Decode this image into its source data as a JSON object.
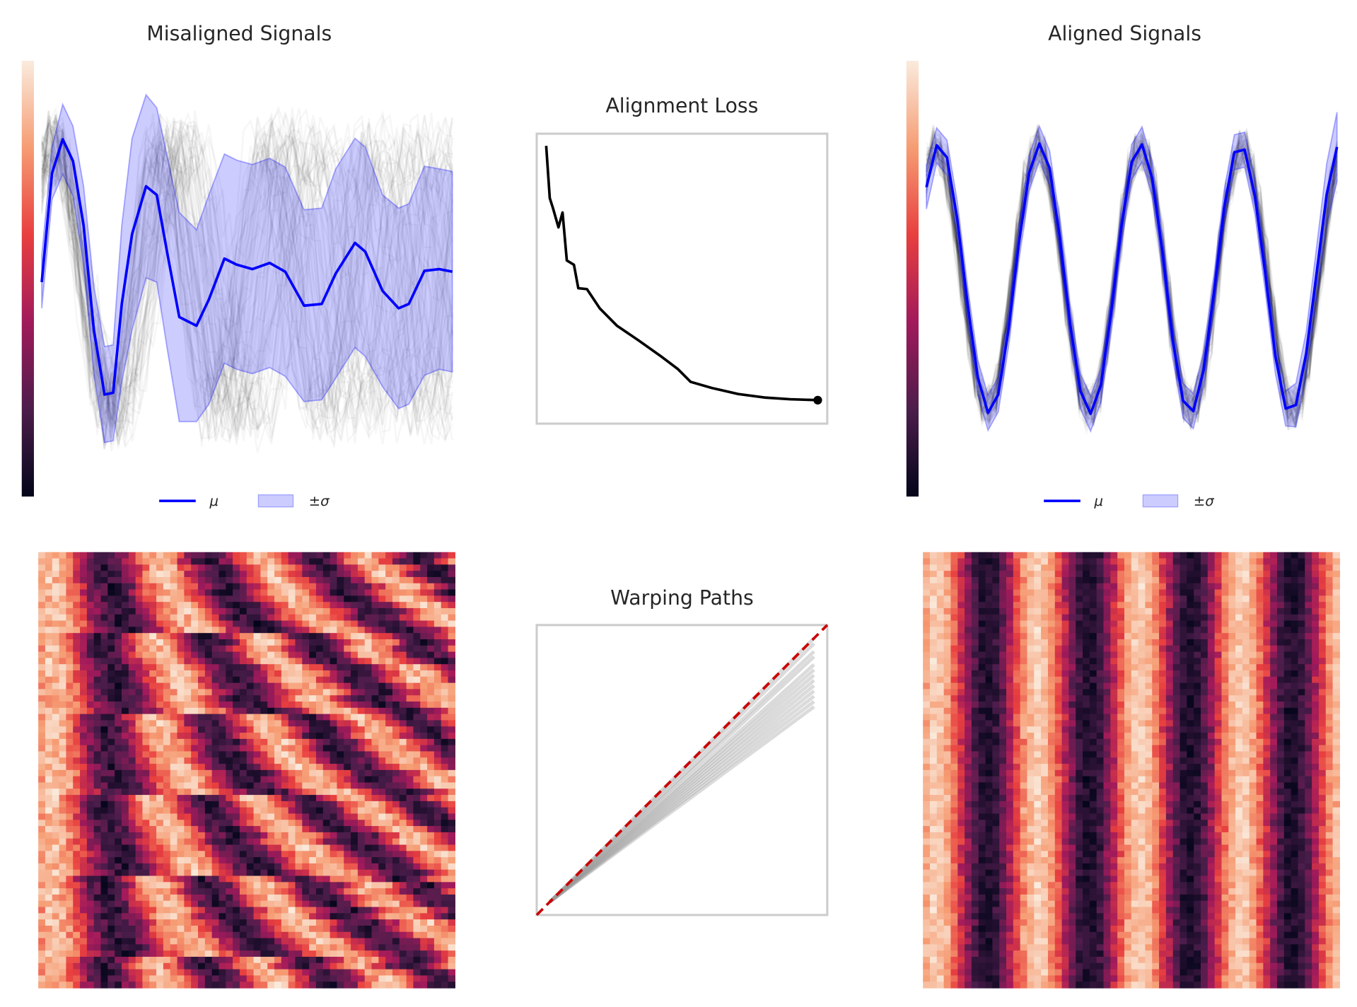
{
  "chart_data": [
    {
      "type": "band",
      "title": "Misaligned Signals",
      "x": [
        0,
        2.5,
        5.1,
        7.6,
        10.2,
        12.7,
        15.3,
        17.4,
        19.5,
        22,
        25.4,
        28,
        30.5,
        33.5,
        37.7,
        40.7,
        44.5,
        47.5,
        51.3,
        55.5,
        59.3,
        63.9,
        68.2,
        71.6,
        76.3,
        78.8,
        83,
        86.9,
        89.4,
        93.2,
        96.8,
        100
      ],
      "series": [
        {
          "name": "μ",
          "color": "#0000ff",
          "values": [
            -0.04,
            1.21,
            1.6,
            1.35,
            0.61,
            -0.59,
            -1.33,
            -1.31,
            -0.29,
            0.51,
            1.06,
            0.96,
            0.31,
            -0.44,
            -0.54,
            -0.24,
            0.23,
            0.16,
            0.11,
            0.18,
            0.08,
            -0.31,
            -0.29,
            0.06,
            0.41,
            0.31,
            -0.14,
            -0.34,
            -0.29,
            0.09,
            0.11,
            0.08
          ]
        },
        {
          "name": "±σ",
          "color": "#0000ff",
          "values": [
            0.3,
            0.3,
            0.4,
            0.4,
            0.45,
            0.5,
            0.55,
            0.55,
            0.9,
            1.1,
            1.05,
            1.0,
            1.1,
            1.2,
            1.1,
            1.2,
            1.2,
            1.2,
            1.2,
            1.2,
            1.2,
            1.1,
            1.1,
            1.2,
            1.2,
            1.2,
            1.1,
            1.15,
            1.15,
            1.2,
            1.15,
            1.15
          ]
        }
      ],
      "xlim": [
        0,
        100
      ],
      "ylim": [
        -2.5,
        2.5
      ],
      "colormap": "rocket",
      "warped": true
    },
    {
      "type": "line",
      "title": "Alignment Loss",
      "x": [
        0,
        1.3,
        2.5,
        4.5,
        6,
        7.6,
        10.2,
        11.8,
        15,
        19.7,
        26,
        34,
        42,
        48.4,
        53.2,
        61,
        70.7,
        80.3,
        89.8,
        100
      ],
      "values": [
        0.958,
        0.778,
        0.743,
        0.677,
        0.728,
        0.563,
        0.548,
        0.467,
        0.464,
        0.398,
        0.338,
        0.287,
        0.234,
        0.189,
        0.144,
        0.123,
        0.102,
        0.09,
        0.084,
        0.081
      ],
      "color": "#000000",
      "xlim": [
        -3.5,
        103.5
      ],
      "ylim": [
        0,
        1
      ]
    },
    {
      "type": "band",
      "title": "Aligned Signals",
      "x": [
        0,
        2.5,
        5,
        7.5,
        10,
        12.5,
        15,
        17.5,
        20,
        22.5,
        25,
        27.5,
        30,
        32.5,
        35,
        37.5,
        40,
        42.5,
        45,
        47.5,
        50,
        52.5,
        55,
        57.5,
        60,
        62.5,
        65,
        67.5,
        70,
        72.5,
        75,
        77.5,
        80,
        82.5,
        85,
        87.5,
        90,
        92.5,
        95,
        97.5,
        100
      ],
      "series": [
        {
          "name": "μ",
          "color": "#0000ff",
          "values": [
            1.05,
            1.53,
            1.39,
            0.69,
            -0.28,
            -1.13,
            -1.54,
            -1.33,
            -0.58,
            0.4,
            1.21,
            1.55,
            1.27,
            0.47,
            -0.52,
            -1.29,
            -1.55,
            -1.22,
            -0.39,
            0.6,
            1.34,
            1.54,
            1.15,
            0.3,
            -0.71,
            -1.4,
            -1.52,
            -1.05,
            -0.17,
            0.81,
            1.45,
            1.48,
            0.95,
            0.07,
            -0.89,
            -1.49,
            -1.45,
            -0.86,
            0.05,
            0.97,
            1.51
          ]
        },
        {
          "name": "±σ",
          "color": "#0000ff",
          "values": [
            0.25,
            0.2,
            0.2,
            0.2,
            0.2,
            0.2,
            0.2,
            0.2,
            0.2,
            0.2,
            0.2,
            0.2,
            0.2,
            0.2,
            0.2,
            0.2,
            0.2,
            0.2,
            0.2,
            0.2,
            0.2,
            0.2,
            0.2,
            0.2,
            0.2,
            0.2,
            0.2,
            0.2,
            0.2,
            0.2,
            0.2,
            0.2,
            0.2,
            0.2,
            0.2,
            0.2,
            0.25,
            0.25,
            0.3,
            0.35,
            0.4
          ]
        }
      ],
      "xlim": [
        0,
        100
      ],
      "ylim": [
        -2.5,
        2.5
      ],
      "colormap": "rocket",
      "warped": false
    },
    {
      "type": "paths",
      "title": "Warping Paths",
      "ends": [
        1.0,
        0.98,
        0.95,
        0.93,
        0.9,
        0.88,
        0.86,
        0.84,
        0.82,
        0.8,
        0.78,
        0.76,
        0.74
      ],
      "color": "#999999",
      "reference_color": "#cc0000",
      "xlim": [
        -0.05,
        1.05
      ],
      "ylim": [
        -0.05,
        1.05
      ]
    }
  ]
}
